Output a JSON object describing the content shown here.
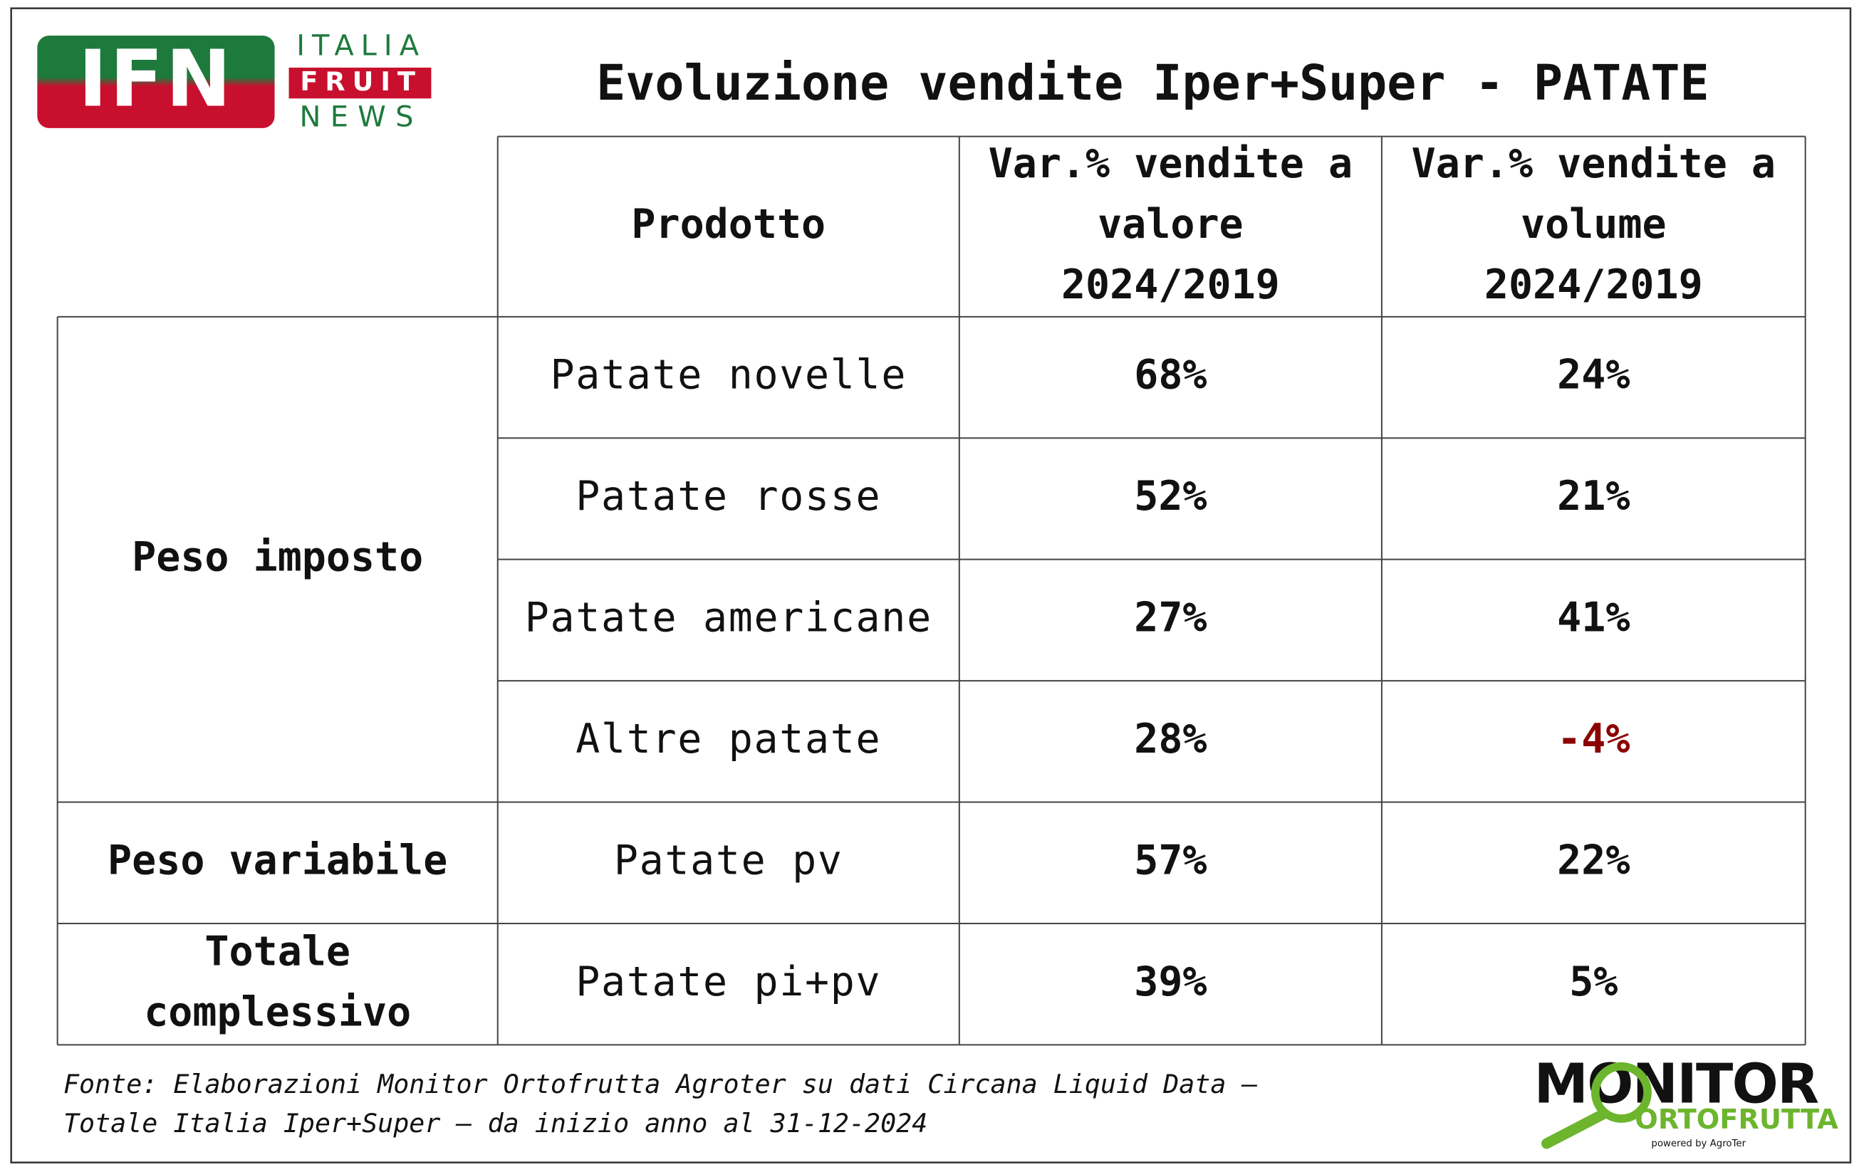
{
  "header": {
    "title": "Evoluzione vendite Iper+Super - PATATE",
    "logo_left": {
      "mark": "IFN",
      "lines": [
        "ITALIA",
        "FRUIT",
        "NEWS"
      ]
    },
    "logo_right": {
      "name": "MONITOR",
      "sub": "ORTOFRUTTA",
      "powered": "powered by AgroTer"
    }
  },
  "table": {
    "columns": [
      [
        "Prodotto"
      ],
      [
        "Var.% vendite a",
        "valore",
        "2024/2019"
      ],
      [
        "Var.% vendite a",
        "volume",
        "2024/2019"
      ]
    ],
    "groups": [
      {
        "label": [
          "Peso imposto"
        ],
        "rows": [
          [
            "Patate novelle",
            "68%",
            "24%"
          ],
          [
            "Patate rosse",
            "52%",
            "21%"
          ],
          [
            "Patate americane",
            "27%",
            "41%"
          ],
          [
            "Altre patate",
            "28%",
            "-4%"
          ]
        ]
      },
      {
        "label": [
          "Peso variabile"
        ],
        "rows": [
          [
            "Patate pv",
            "57%",
            "22%"
          ]
        ]
      },
      {
        "label": [
          "Totale",
          "complessivo"
        ],
        "rows": [
          [
            "Patate pi+pv",
            "39%",
            "5%"
          ]
        ]
      }
    ]
  },
  "footer": {
    "lines": [
      "Fonte: Elaborazioni Monitor Ortofrutta Agroter su dati Circana Liquid Data –",
      "Totale Italia Iper+Super –  da inizio anno al 31-12-2024"
    ]
  }
}
